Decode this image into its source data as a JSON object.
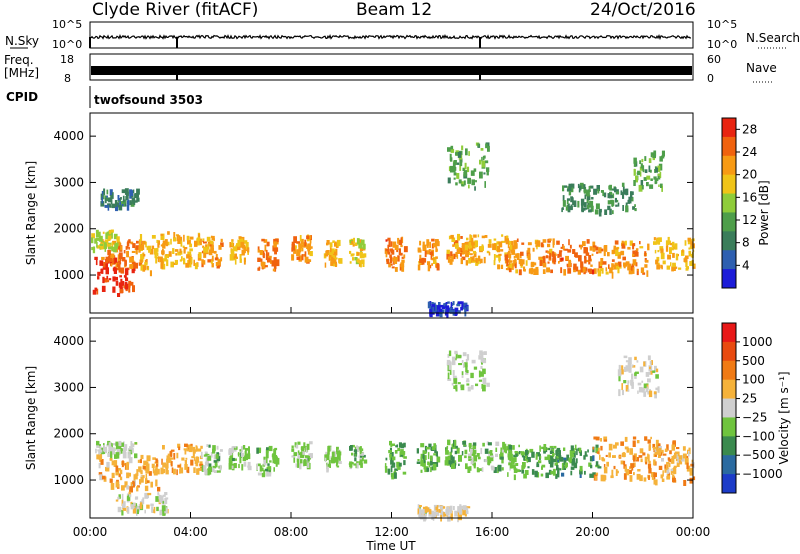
{
  "header": {
    "station": "Clyde River (fitACF)",
    "beam": "Beam 12",
    "date": "24/Oct/2016"
  },
  "strips": {
    "nsky_label": "N.Sky",
    "nsky_ticks": [
      "10^5",
      "10^0"
    ],
    "nsearch_label": "N.Search",
    "nsearch_ticks": [
      "10^5",
      "10^0"
    ],
    "freq_label_line1": "Freq.",
    "freq_label_line2": "[MHz]",
    "freq_ticks": [
      "18",
      "8"
    ],
    "nave_label": "Nave",
    "nave_ticks": [
      "60",
      "0"
    ],
    "cpid_label": "CPID",
    "cpid_value": "twofsound 3503"
  },
  "chart_data": [
    {
      "type": "heatmap",
      "name": "power",
      "ylabel": "Slant Range [km]",
      "xlabel": "",
      "ylim": [
        180,
        4500
      ],
      "y_ticks": [
        "1000",
        "2000",
        "3000",
        "4000"
      ],
      "x_ticks": [
        "00:00",
        "04:00",
        "08:00",
        "12:00",
        "16:00",
        "20:00",
        "00:00"
      ],
      "colorbar_label": "Power [dB]",
      "colorbar_ticks": [
        "4",
        "8",
        "12",
        "16",
        "20",
        "24",
        "28"
      ],
      "colorbar_colors": [
        "#1c1cd8",
        "#2e5fb0",
        "#3a7d5a",
        "#4e9e4a",
        "#8fcc3a",
        "#f0c418",
        "#f79a14",
        "#f0620e",
        "#e82410"
      ],
      "value_range": [
        0,
        30
      ],
      "blobs": [
        {
          "t": 0.9,
          "r": 1000,
          "dt": 0.8,
          "dr": 400,
          "v": 28
        },
        {
          "t": 1.2,
          "r": 1500,
          "dt": 0.8,
          "dr": 300,
          "v": 24
        },
        {
          "t": 0.5,
          "r": 1800,
          "dt": 0.6,
          "dr": 200,
          "v": 16
        },
        {
          "t": 1.2,
          "r": 2700,
          "dt": 0.8,
          "dr": 200,
          "v": 8
        },
        {
          "t": 2.4,
          "r": 1500,
          "dt": 0.5,
          "dr": 400,
          "v": 20
        },
        {
          "t": 3.6,
          "r": 1600,
          "dt": 0.8,
          "dr": 350,
          "v": 20
        },
        {
          "t": 4.8,
          "r": 1550,
          "dt": 0.4,
          "dr": 300,
          "v": 22
        },
        {
          "t": 5.9,
          "r": 1600,
          "dt": 0.4,
          "dr": 250,
          "v": 20
        },
        {
          "t": 7.0,
          "r": 1450,
          "dt": 0.4,
          "dr": 350,
          "v": 24
        },
        {
          "t": 8.4,
          "r": 1600,
          "dt": 0.4,
          "dr": 280,
          "v": 22
        },
        {
          "t": 9.6,
          "r": 1500,
          "dt": 0.3,
          "dr": 260,
          "v": 20
        },
        {
          "t": 10.6,
          "r": 1550,
          "dt": 0.3,
          "dr": 260,
          "v": 18
        },
        {
          "t": 12.1,
          "r": 1500,
          "dt": 0.4,
          "dr": 350,
          "v": 24
        },
        {
          "t": 13.4,
          "r": 1500,
          "dt": 0.4,
          "dr": 300,
          "v": 22
        },
        {
          "t": 14.7,
          "r": 1600,
          "dt": 0.6,
          "dr": 300,
          "v": 22
        },
        {
          "t": 15.9,
          "r": 1550,
          "dt": 1.0,
          "dr": 330,
          "v": 20
        },
        {
          "t": 17.5,
          "r": 1450,
          "dt": 1.0,
          "dr": 350,
          "v": 22
        },
        {
          "t": 19.2,
          "r": 1450,
          "dt": 1.0,
          "dr": 350,
          "v": 24
        },
        {
          "t": 21.2,
          "r": 1400,
          "dt": 1.0,
          "dr": 350,
          "v": 22
        },
        {
          "t": 23.2,
          "r": 1500,
          "dt": 0.8,
          "dr": 350,
          "v": 20
        },
        {
          "t": 14.2,
          "r": 330,
          "dt": 0.8,
          "dr": 120,
          "v": 4
        },
        {
          "t": 20.2,
          "r": 2700,
          "dt": 1.5,
          "dr": 300,
          "v": 10
        },
        {
          "t": 22.2,
          "r": 3300,
          "dt": 0.6,
          "dr": 400,
          "v": 12
        },
        {
          "t": 15.0,
          "r": 3400,
          "dt": 0.8,
          "dr": 500,
          "v": 12
        }
      ]
    },
    {
      "type": "heatmap",
      "name": "velocity",
      "ylabel": "Slant Range [km]",
      "xlabel": "Time UT",
      "ylim": [
        180,
        4500
      ],
      "y_ticks": [
        "1000",
        "2000",
        "3000",
        "4000"
      ],
      "x_ticks": [
        "00:00",
        "04:00",
        "08:00",
        "12:00",
        "16:00",
        "20:00",
        "00:00"
      ],
      "colorbar_label": "Velocity [m s⁻¹]",
      "colorbar_ticks": [
        "1000",
        "500",
        "100",
        "25",
        "−25",
        "−100",
        "−500",
        "−1000"
      ],
      "colorbar_colors": [
        "#1c3cc8",
        "#2a6aa0",
        "#3a8a4e",
        "#6fc43e",
        "#cfcfcf",
        "#f5b23a",
        "#f07a14",
        "#e84a10",
        "#e81818"
      ],
      "value_range": [
        -1000,
        1000
      ],
      "blobs": [
        {
          "t": 1.5,
          "r": 1200,
          "dt": 1.2,
          "dr": 350,
          "v": 250
        },
        {
          "t": 1.0,
          "r": 1700,
          "dt": 0.8,
          "dr": 150,
          "v": -60
        },
        {
          "t": 2.0,
          "r": 550,
          "dt": 1.0,
          "dr": 200,
          "v": 10
        },
        {
          "t": 3.6,
          "r": 1500,
          "dt": 0.8,
          "dr": 300,
          "v": 300
        },
        {
          "t": 4.8,
          "r": 1500,
          "dt": 0.4,
          "dr": 300,
          "v": -200
        },
        {
          "t": 5.9,
          "r": 1550,
          "dt": 0.4,
          "dr": 250,
          "v": -180
        },
        {
          "t": 7.0,
          "r": 1450,
          "dt": 0.4,
          "dr": 300,
          "v": -220
        },
        {
          "t": 8.4,
          "r": 1600,
          "dt": 0.4,
          "dr": 250,
          "v": -180
        },
        {
          "t": 9.6,
          "r": 1500,
          "dt": 0.3,
          "dr": 250,
          "v": -150
        },
        {
          "t": 10.6,
          "r": 1550,
          "dt": 0.3,
          "dr": 260,
          "v": -200
        },
        {
          "t": 12.1,
          "r": 1500,
          "dt": 0.4,
          "dr": 350,
          "v": -300
        },
        {
          "t": 13.4,
          "r": 1500,
          "dt": 0.4,
          "dr": 300,
          "v": -320
        },
        {
          "t": 14.7,
          "r": 1600,
          "dt": 0.6,
          "dr": 300,
          "v": -250
        },
        {
          "t": 16.0,
          "r": 1550,
          "dt": 1.0,
          "dr": 300,
          "v": -200
        },
        {
          "t": 17.6,
          "r": 1450,
          "dt": 1.0,
          "dr": 330,
          "v": -300
        },
        {
          "t": 19.2,
          "r": 1450,
          "dt": 1.0,
          "dr": 330,
          "v": -400
        },
        {
          "t": 21.6,
          "r": 1500,
          "dt": 1.6,
          "dr": 450,
          "v": 300
        },
        {
          "t": 23.2,
          "r": 1400,
          "dt": 0.8,
          "dr": 400,
          "v": 250
        },
        {
          "t": 14.0,
          "r": 350,
          "dt": 1.0,
          "dr": 130,
          "v": 60
        },
        {
          "t": 21.8,
          "r": 3300,
          "dt": 0.8,
          "dr": 400,
          "v": 0
        },
        {
          "t": 15.0,
          "r": 3400,
          "dt": 0.8,
          "dr": 400,
          "v": -80
        }
      ]
    }
  ]
}
